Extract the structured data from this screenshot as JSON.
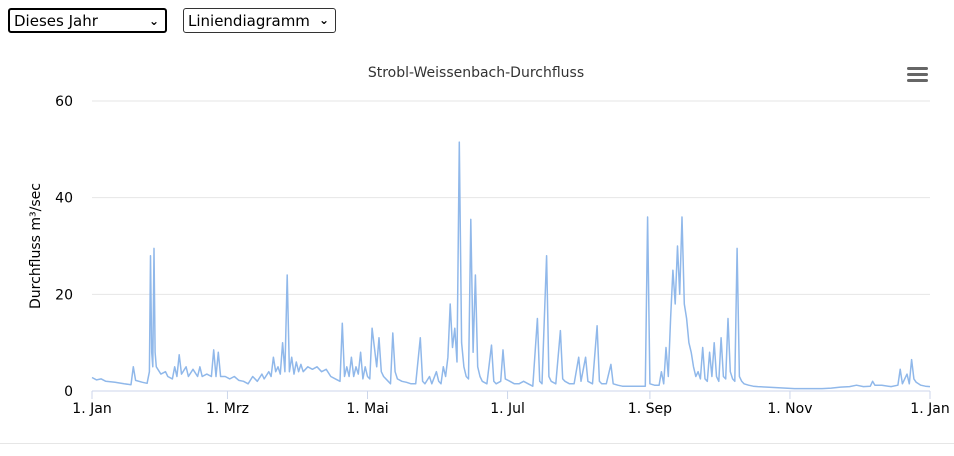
{
  "controls": {
    "period_select": {
      "selected": "Dieses Jahr"
    },
    "type_select": {
      "selected": "Liniendiagramm"
    },
    "chevron": "chevron-down-icon"
  },
  "menu_icon": "hamburger-menu-icon",
  "chart_data": {
    "type": "line",
    "title": "Strobl-Weissenbach-Durchfluss",
    "ylabel": "Durchfluss m³/sec",
    "xlabel": "",
    "ylim": [
      0,
      60
    ],
    "yticks": [
      0,
      20,
      40,
      60
    ],
    "xlim_days": [
      0,
      365
    ],
    "xticks": [
      {
        "label": "1. Jan",
        "day": 0
      },
      {
        "label": "1. Mrz",
        "day": 59
      },
      {
        "label": "1. Mai",
        "day": 120
      },
      {
        "label": "1. Jul",
        "day": 181
      },
      {
        "label": "1. Sep",
        "day": 243
      },
      {
        "label": "1. Nov",
        "day": 304
      },
      {
        "label": "1. Jan",
        "day": 365
      }
    ],
    "grid": true,
    "legend": "none",
    "color": "#90b8ea",
    "series": [
      {
        "values": [
          [
            0,
            2.8
          ],
          [
            2,
            2.3
          ],
          [
            4,
            2.5
          ],
          [
            6,
            2
          ],
          [
            10,
            1.8
          ],
          [
            14,
            1.5
          ],
          [
            17,
            1.3
          ],
          [
            18,
            5
          ],
          [
            19,
            2.2
          ],
          [
            22,
            1.8
          ],
          [
            24,
            1.6
          ],
          [
            25,
            4
          ],
          [
            25.5,
            28
          ],
          [
            26,
            8
          ],
          [
            26.5,
            5
          ],
          [
            27,
            29.5
          ],
          [
            27.5,
            8
          ],
          [
            28,
            5
          ],
          [
            30,
            3.5
          ],
          [
            32,
            4
          ],
          [
            33,
            3
          ],
          [
            35,
            2.5
          ],
          [
            36,
            5
          ],
          [
            37,
            3
          ],
          [
            38,
            7.5
          ],
          [
            39,
            3.5
          ],
          [
            41,
            5
          ],
          [
            42,
            3
          ],
          [
            44,
            4.5
          ],
          [
            46,
            3
          ],
          [
            47,
            5
          ],
          [
            48,
            3
          ],
          [
            50,
            3.5
          ],
          [
            52,
            3
          ],
          [
            53,
            8.5
          ],
          [
            54,
            3
          ],
          [
            55,
            8
          ],
          [
            56,
            3
          ],
          [
            58,
            3
          ],
          [
            60,
            2.5
          ],
          [
            62,
            3
          ],
          [
            64,
            2.2
          ],
          [
            66,
            2
          ],
          [
            68,
            1.5
          ],
          [
            70,
            3
          ],
          [
            72,
            2
          ],
          [
            74,
            3.5
          ],
          [
            75,
            2.5
          ],
          [
            77,
            4
          ],
          [
            78,
            3
          ],
          [
            79,
            7
          ],
          [
            80,
            4
          ],
          [
            81,
            5
          ],
          [
            82,
            3.5
          ],
          [
            83,
            10
          ],
          [
            84,
            4
          ],
          [
            85,
            24
          ],
          [
            86,
            4
          ],
          [
            87,
            7
          ],
          [
            88,
            3.5
          ],
          [
            89,
            6
          ],
          [
            90,
            4
          ],
          [
            91,
            5.5
          ],
          [
            92,
            4
          ],
          [
            94,
            5
          ],
          [
            96,
            4.5
          ],
          [
            98,
            5
          ],
          [
            100,
            4
          ],
          [
            102,
            4.5
          ],
          [
            104,
            3
          ],
          [
            106,
            2.5
          ],
          [
            108,
            2
          ],
          [
            109,
            14
          ],
          [
            110,
            3
          ],
          [
            111,
            5
          ],
          [
            112,
            3
          ],
          [
            113,
            7
          ],
          [
            114,
            3
          ],
          [
            115,
            5
          ],
          [
            116,
            3.5
          ],
          [
            117,
            8
          ],
          [
            118,
            2.5
          ],
          [
            119,
            5
          ],
          [
            120,
            3
          ],
          [
            121,
            2.5
          ],
          [
            122,
            13
          ],
          [
            123,
            9
          ],
          [
            124,
            5
          ],
          [
            125,
            11
          ],
          [
            126,
            4
          ],
          [
            127,
            3
          ],
          [
            129,
            2
          ],
          [
            130,
            1.5
          ],
          [
            131,
            12
          ],
          [
            132,
            4
          ],
          [
            133,
            2.5
          ],
          [
            135,
            2
          ],
          [
            137,
            1.8
          ],
          [
            139,
            1.5
          ],
          [
            141,
            1.5
          ],
          [
            143,
            11
          ],
          [
            144,
            2
          ],
          [
            145,
            1.5
          ],
          [
            147,
            3
          ],
          [
            148,
            1.5
          ],
          [
            150,
            4
          ],
          [
            151,
            2
          ],
          [
            152,
            1.5
          ],
          [
            153,
            5
          ],
          [
            154,
            3
          ],
          [
            155,
            7
          ],
          [
            156,
            18
          ],
          [
            157,
            9
          ],
          [
            158,
            13
          ],
          [
            159,
            6
          ],
          [
            160,
            51.5
          ],
          [
            161,
            10
          ],
          [
            162,
            5
          ],
          [
            163,
            3
          ],
          [
            164,
            2.5
          ],
          [
            165,
            35.5
          ],
          [
            166,
            8
          ],
          [
            167,
            24
          ],
          [
            168,
            5
          ],
          [
            169,
            3
          ],
          [
            170,
            2
          ],
          [
            172,
            1.5
          ],
          [
            174,
            9.5
          ],
          [
            175,
            2
          ],
          [
            176,
            1.5
          ],
          [
            178,
            2
          ],
          [
            179,
            8.5
          ],
          [
            180,
            2.5
          ],
          [
            182,
            2
          ],
          [
            184,
            1.5
          ],
          [
            186,
            1.5
          ],
          [
            188,
            2
          ],
          [
            190,
            1.5
          ],
          [
            192,
            1
          ],
          [
            194,
            15
          ],
          [
            195,
            2
          ],
          [
            196,
            1.5
          ],
          [
            198,
            28
          ],
          [
            199,
            3
          ],
          [
            200,
            2
          ],
          [
            202,
            1.5
          ],
          [
            204,
            12.5
          ],
          [
            205,
            2.5
          ],
          [
            206,
            2
          ],
          [
            208,
            1.5
          ],
          [
            210,
            1.5
          ],
          [
            212,
            7
          ],
          [
            213,
            2
          ],
          [
            215,
            7
          ],
          [
            216,
            2
          ],
          [
            218,
            1.5
          ],
          [
            220,
            13.5
          ],
          [
            221,
            2
          ],
          [
            222,
            1.5
          ],
          [
            224,
            1.5
          ],
          [
            226,
            5.5
          ],
          [
            227,
            1.5
          ],
          [
            229,
            1.2
          ],
          [
            231,
            1
          ],
          [
            233,
            1
          ],
          [
            235,
            1
          ],
          [
            237,
            1
          ],
          [
            239,
            1
          ],
          [
            241,
            1
          ],
          [
            242,
            36
          ],
          [
            243,
            1.5
          ],
          [
            245,
            1.2
          ],
          [
            247,
            1.2
          ],
          [
            248,
            4
          ],
          [
            249,
            1.5
          ],
          [
            250,
            9
          ],
          [
            251,
            3
          ],
          [
            252,
            15
          ],
          [
            253,
            25
          ],
          [
            254,
            18
          ],
          [
            255,
            30
          ],
          [
            256,
            20
          ],
          [
            257,
            36
          ],
          [
            258,
            18
          ],
          [
            259,
            15
          ],
          [
            260,
            10
          ],
          [
            261,
            8
          ],
          [
            262,
            5
          ],
          [
            263,
            3
          ],
          [
            264,
            4
          ],
          [
            265,
            2.5
          ],
          [
            266,
            9
          ],
          [
            267,
            2.5
          ],
          [
            268,
            2
          ],
          [
            269,
            8
          ],
          [
            270,
            3
          ],
          [
            271,
            10
          ],
          [
            272,
            3
          ],
          [
            273,
            2
          ],
          [
            274,
            11
          ],
          [
            275,
            3
          ],
          [
            276,
            2.5
          ],
          [
            277,
            15
          ],
          [
            278,
            4
          ],
          [
            279,
            2.5
          ],
          [
            280,
            2
          ],
          [
            281,
            29.5
          ],
          [
            282,
            3
          ],
          [
            283,
            2
          ],
          [
            284,
            1.5
          ],
          [
            286,
            1.2
          ],
          [
            288,
            1
          ],
          [
            290,
            0.9
          ],
          [
            294,
            0.8
          ],
          [
            298,
            0.7
          ],
          [
            302,
            0.6
          ],
          [
            306,
            0.5
          ],
          [
            310,
            0.5
          ],
          [
            314,
            0.5
          ],
          [
            318,
            0.5
          ],
          [
            322,
            0.6
          ],
          [
            326,
            0.8
          ],
          [
            330,
            0.9
          ],
          [
            333,
            1.2
          ],
          [
            336,
            0.9
          ],
          [
            339,
            1
          ],
          [
            340,
            2
          ],
          [
            341,
            1.2
          ],
          [
            344,
            1.2
          ],
          [
            348,
            0.9
          ],
          [
            351,
            1.2
          ],
          [
            352,
            4.5
          ],
          [
            353,
            1.5
          ],
          [
            355,
            3.5
          ],
          [
            356,
            1.5
          ],
          [
            357,
            6.5
          ],
          [
            358,
            2.5
          ],
          [
            359,
            1.8
          ],
          [
            361,
            1.2
          ],
          [
            363,
            1
          ],
          [
            365,
            0.9
          ]
        ]
      }
    ]
  }
}
